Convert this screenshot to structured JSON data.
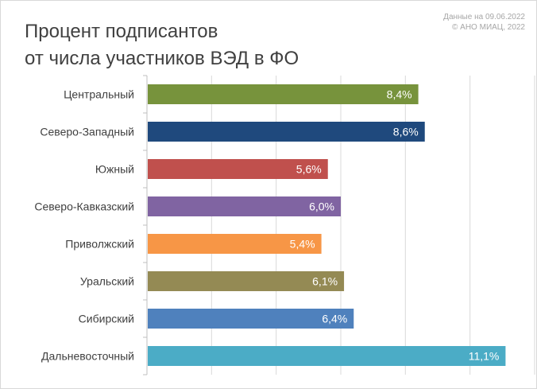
{
  "title": {
    "line1": "Процент подписантов",
    "line2": "от числа участников ВЭД в ФО"
  },
  "source": {
    "line1": "Данные на 09.06.2022",
    "line2": "© АНО МИАЦ, 2022"
  },
  "chart_data": {
    "type": "bar",
    "orientation": "horizontal",
    "title": "Процент подписантов от числа участников ВЭД в ФО",
    "categories": [
      "Центральный",
      "Северо-Западный",
      "Южный",
      "Северо-Кавказский",
      "Приволжский",
      "Уральский",
      "Сибирский",
      "Дальневосточный"
    ],
    "values": [
      8.4,
      8.6,
      5.6,
      6.0,
      5.4,
      6.1,
      6.4,
      11.1
    ],
    "value_labels": [
      "8,4%",
      "8,6%",
      "5,6%",
      "6,0%",
      "5,4%",
      "6,1%",
      "6,4%",
      "11,1%"
    ],
    "colors": [
      "#77933c",
      "#1f497d",
      "#c0504d",
      "#8064a2",
      "#f79646",
      "#948a54",
      "#4f81bd",
      "#4bacc6"
    ],
    "xlim": [
      0,
      12
    ],
    "grid": true,
    "grid_step": 2,
    "axis_color": "#bfbfbf",
    "grid_color": "#d9d9d9"
  }
}
